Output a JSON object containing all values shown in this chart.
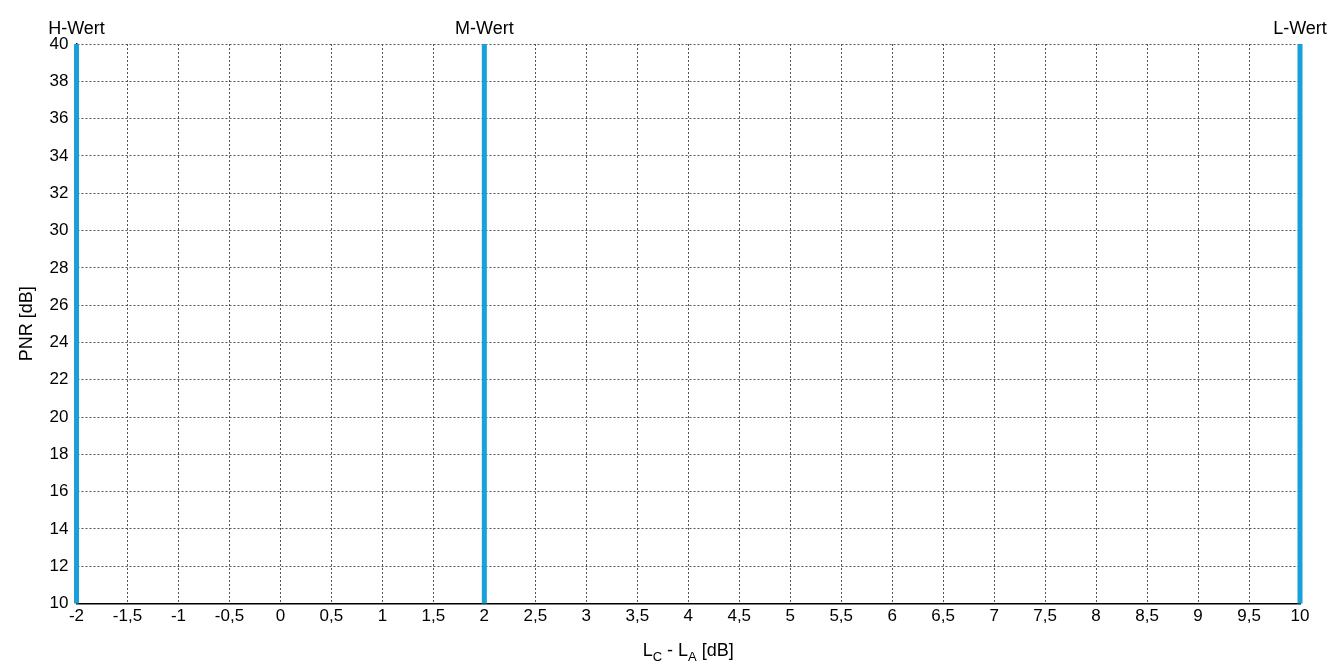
{
  "chart_data": {
    "type": "line",
    "xlabel": "L$_{C}$ - L$_{A}$ [dB]",
    "ylabel": "PNR [dB]",
    "xlim": [
      -2,
      10
    ],
    "ylim": [
      10,
      40
    ],
    "xticks": [
      -2,
      {
        "value": -1.5,
        "label": "-1,5"
      },
      -1,
      {
        "value": -0.5,
        "label": "-0,5"
      },
      0,
      {
        "value": 0.5,
        "label": "0,5"
      },
      1,
      {
        "value": 1.5,
        "label": "1,5"
      },
      2,
      {
        "value": 2.5,
        "label": "2,5"
      },
      3,
      {
        "value": 3.5,
        "label": "3,5"
      },
      4,
      {
        "value": 4.5,
        "label": "4,5"
      },
      5,
      {
        "value": 5.5,
        "label": "5,5"
      },
      6,
      {
        "value": 6.5,
        "label": "6,5"
      },
      7,
      {
        "value": 7.5,
        "label": "7,5"
      },
      8,
      {
        "value": 8.5,
        "label": "8,5"
      },
      9,
      {
        "value": 9.5,
        "label": "9,5"
      },
      10
    ],
    "yticks": [
      10,
      12,
      14,
      16,
      18,
      20,
      22,
      24,
      26,
      28,
      30,
      32,
      34,
      36,
      38,
      40
    ],
    "grid": true,
    "ref_lines": [
      {
        "axis": "x",
        "value": -2,
        "label": "H-Wert",
        "color": "#1aa0d8"
      },
      {
        "axis": "x",
        "value": 2,
        "label": "M-Wert",
        "color": "#1aa0d8"
      },
      {
        "axis": "x",
        "value": 10,
        "label": "L-Wert",
        "color": "#1aa0d8"
      }
    ]
  }
}
